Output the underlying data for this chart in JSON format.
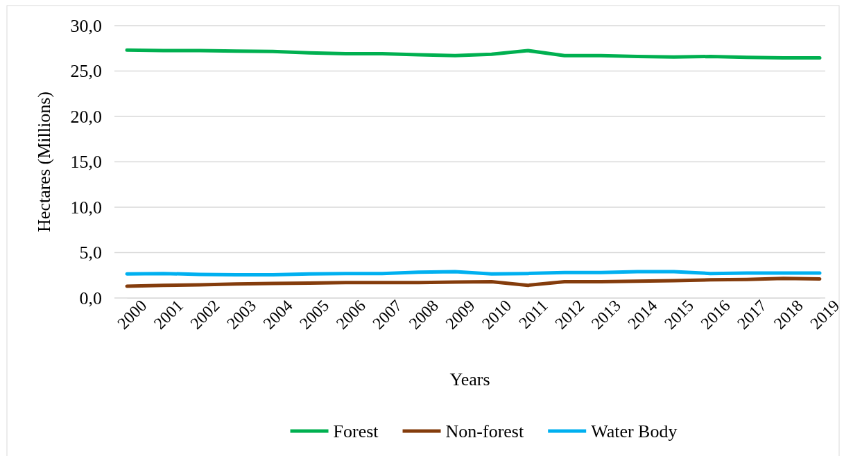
{
  "chart_data": {
    "type": "line",
    "xlabel": "Years",
    "ylabel": "Hectares (Millions)",
    "categories": [
      "2000",
      "2001",
      "2002",
      "2003",
      "2004",
      "2005",
      "2006",
      "2007",
      "2008",
      "2009",
      "2010",
      "2011",
      "2012",
      "2013",
      "2014",
      "2015",
      "2016",
      "2017",
      "2018",
      "2019"
    ],
    "series": [
      {
        "name": "Forest",
        "color": "#00b050",
        "values": [
          27.3,
          27.25,
          27.25,
          27.2,
          27.15,
          27.0,
          26.9,
          26.9,
          26.8,
          26.7,
          26.85,
          27.25,
          26.7,
          26.7,
          26.6,
          26.55,
          26.6,
          26.5,
          26.45,
          26.45
        ]
      },
      {
        "name": "Non-forest",
        "color": "#843c0c",
        "values": [
          1.3,
          1.4,
          1.45,
          1.55,
          1.6,
          1.65,
          1.7,
          1.7,
          1.7,
          1.75,
          1.8,
          1.4,
          1.8,
          1.8,
          1.85,
          1.9,
          2.0,
          2.05,
          2.15,
          2.1
        ]
      },
      {
        "name": "Water Body",
        "color": "#00b0f0",
        "values": [
          2.65,
          2.7,
          2.6,
          2.55,
          2.55,
          2.65,
          2.7,
          2.7,
          2.85,
          2.9,
          2.65,
          2.7,
          2.8,
          2.8,
          2.9,
          2.9,
          2.7,
          2.75,
          2.75,
          2.75
        ]
      }
    ],
    "ylim": [
      0,
      30
    ],
    "yticks": [
      {
        "value": 0,
        "label": "0,0"
      },
      {
        "value": 5,
        "label": "5,0"
      },
      {
        "value": 10,
        "label": "10,0"
      },
      {
        "value": 15,
        "label": "15,0"
      },
      {
        "value": 20,
        "label": "20,0"
      },
      {
        "value": 25,
        "label": "25,0"
      },
      {
        "value": 30,
        "label": "30,0"
      }
    ],
    "grid": "y",
    "legend": "bottom",
    "marker": "none",
    "line_style": "solid"
  }
}
